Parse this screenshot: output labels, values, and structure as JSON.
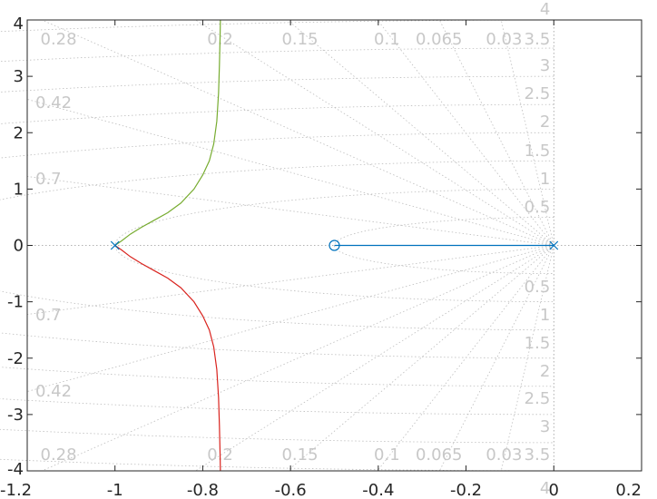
{
  "chart_data": {
    "type": "line",
    "title": "",
    "xlabel": "",
    "ylabel": "",
    "xlim": [
      -1.2,
      0.2
    ],
    "ylim": [
      -4,
      4
    ],
    "x_ticks": [
      "-1.2",
      "-1",
      "-0.8",
      "-0.6",
      "-0.4",
      "-0.2",
      "0",
      "0.2"
    ],
    "y_ticks": [
      "-4",
      "-3",
      "-2",
      "-1",
      "0",
      "1",
      "2",
      "3",
      "4"
    ],
    "grid": "on",
    "grid_type": "s-plane damping ratio / natural frequency",
    "damping_labels": [
      "0.28",
      "0.2",
      "0.15",
      "0.1",
      "0.065",
      "0.03",
      "0.42",
      "0.7"
    ],
    "frequency_labels": [
      "4",
      "3.5",
      "3",
      "2.5",
      "2",
      "1.5",
      "1",
      "0.5"
    ],
    "series": [
      {
        "color": "#0072bd",
        "x": [
          -0.5,
          -0.4,
          -0.3,
          -0.2,
          -0.1,
          0
        ],
        "y": [
          0,
          0,
          0,
          0,
          0,
          0
        ]
      },
      {
        "color": "#77ac30",
        "x": [
          -1.0,
          -0.985,
          -0.965,
          -0.94,
          -0.91,
          -0.88,
          -0.85,
          -0.82,
          -0.8,
          -0.785,
          -0.775,
          -0.768,
          -0.764,
          -0.762,
          -0.7605,
          -0.7598
        ],
        "y": [
          0,
          0.08,
          0.2,
          0.32,
          0.45,
          0.58,
          0.75,
          1.0,
          1.25,
          1.5,
          1.8,
          2.2,
          2.7,
          3.2,
          3.7,
          4.0
        ]
      },
      {
        "color": "#d9231e",
        "x": [
          -1.0,
          -0.985,
          -0.965,
          -0.94,
          -0.91,
          -0.88,
          -0.85,
          -0.82,
          -0.8,
          -0.785,
          -0.775,
          -0.768,
          -0.764,
          -0.762,
          -0.7605,
          -0.7598
        ],
        "y": [
          0,
          -0.08,
          -0.2,
          -0.32,
          -0.45,
          -0.58,
          -0.75,
          -1.0,
          -1.25,
          -1.5,
          -1.8,
          -2.2,
          -2.7,
          -3.2,
          -3.7,
          -4.0
        ]
      }
    ],
    "poles": [
      [
        -1,
        0
      ],
      [
        0,
        0
      ]
    ],
    "zeros": [
      [
        -0.5,
        0
      ]
    ],
    "marker_color": "#0072bd"
  }
}
